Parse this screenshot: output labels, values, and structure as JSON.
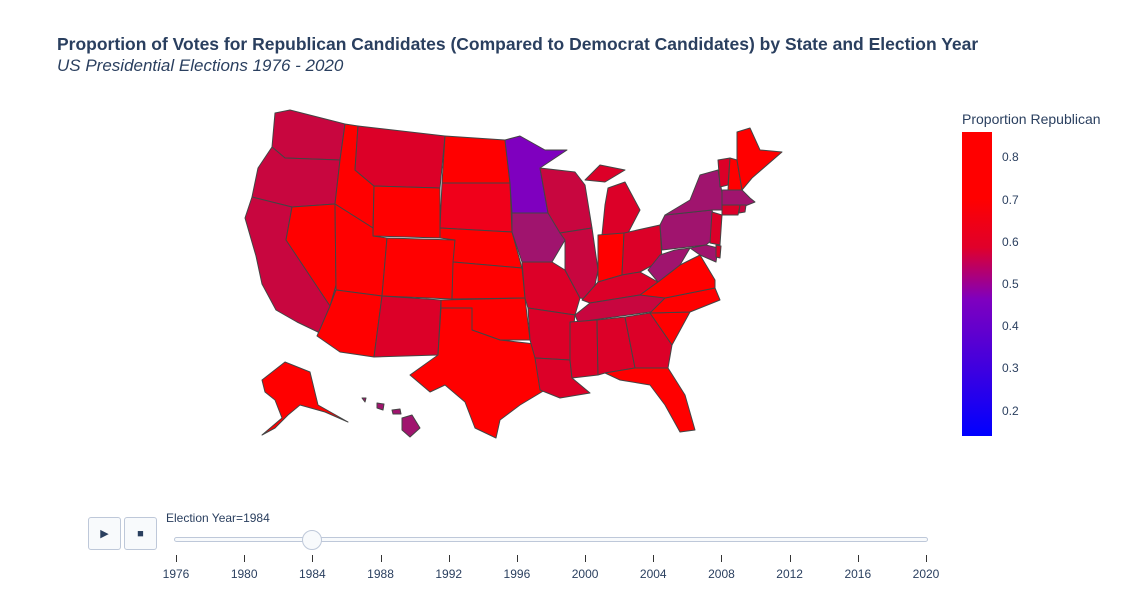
{
  "title": "Proportion of Votes for Republican Candidates (Compared to Democrat Candidates) by State and Election Year",
  "subtitle": "US Presidential Elections 1976 - 2020",
  "colorbar": {
    "title": "Proportion Republican",
    "ticks": [
      "0.2",
      "0.3",
      "0.4",
      "0.5",
      "0.6",
      "0.7",
      "0.8"
    ],
    "tick_values": [
      0.2,
      0.3,
      0.4,
      0.5,
      0.6,
      0.7,
      0.8
    ],
    "range": [
      0.14,
      0.86
    ],
    "low_color": "#0000ff",
    "mid_color": "#7f00bf",
    "high_color": "#ff0000"
  },
  "animation": {
    "play_icon": "▶",
    "stop_icon": "■",
    "slider_label": "Election Year=1984",
    "current_year": 1984,
    "years": [
      "1976",
      "1980",
      "1984",
      "1988",
      "1992",
      "1996",
      "2000",
      "2004",
      "2008",
      "2012",
      "2016",
      "2020"
    ]
  },
  "state_colors": {
    "deep_red": "#ff0000",
    "red": "#f0001a",
    "crimson": "#dc0028",
    "magenta_red": "#c8063f",
    "plum": "#a0146e",
    "purple": "#7f00bf"
  }
}
